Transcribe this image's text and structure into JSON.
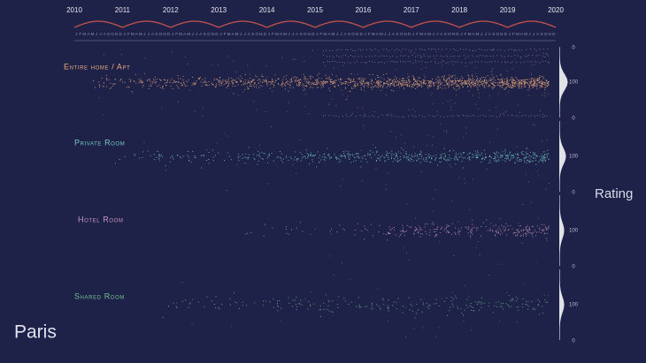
{
  "title": "Paris",
  "axis_label": "Rating",
  "years": [
    "2010",
    "2011",
    "2012",
    "2013",
    "2014",
    "2015",
    "2016",
    "2017",
    "2018",
    "2019",
    "2020"
  ],
  "months": [
    "J",
    "F",
    "M",
    "A",
    "M",
    "J",
    "J",
    "A",
    "S",
    "O",
    "N",
    "D"
  ],
  "panels": [
    {
      "name": "Entire home / Apt",
      "color": "#e8a87c"
    },
    {
      "name": "Private Room",
      "color": "#74c9c1"
    },
    {
      "name": "Hotel Room",
      "color": "#c996bd"
    },
    {
      "name": "Shared Room",
      "color": "#74bf8f"
    }
  ],
  "rating_ticks": [
    "0",
    "100",
    "0",
    "100",
    "0",
    "100",
    "0",
    "100",
    "0"
  ]
}
